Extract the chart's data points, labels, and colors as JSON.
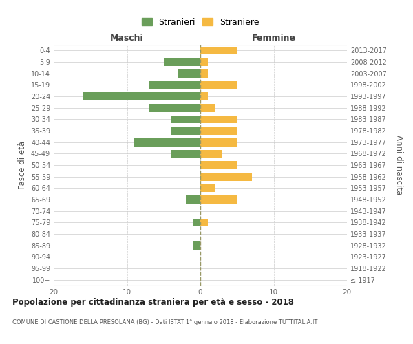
{
  "age_groups": [
    "100+",
    "95-99",
    "90-94",
    "85-89",
    "80-84",
    "75-79",
    "70-74",
    "65-69",
    "60-64",
    "55-59",
    "50-54",
    "45-49",
    "40-44",
    "35-39",
    "30-34",
    "25-29",
    "20-24",
    "15-19",
    "10-14",
    "5-9",
    "0-4"
  ],
  "birth_years": [
    "≤ 1917",
    "1918-1922",
    "1923-1927",
    "1928-1932",
    "1933-1937",
    "1938-1942",
    "1943-1947",
    "1948-1952",
    "1953-1957",
    "1958-1962",
    "1963-1967",
    "1968-1972",
    "1973-1977",
    "1978-1982",
    "1983-1987",
    "1988-1992",
    "1993-1997",
    "1998-2002",
    "2003-2007",
    "2008-2012",
    "2013-2017"
  ],
  "males": [
    0,
    0,
    0,
    1,
    0,
    1,
    0,
    2,
    0,
    0,
    0,
    4,
    9,
    4,
    4,
    7,
    16,
    7,
    3,
    5,
    0
  ],
  "females": [
    0,
    0,
    0,
    0,
    0,
    1,
    0,
    5,
    2,
    7,
    5,
    3,
    5,
    5,
    5,
    2,
    1,
    5,
    1,
    1,
    5
  ],
  "male_color": "#6a9e5a",
  "female_color": "#f5b942",
  "male_label": "Stranieri",
  "female_label": "Straniere",
  "xlabel_left": "Maschi",
  "xlabel_right": "Femmine",
  "ylabel_left": "Fasce di età",
  "ylabel_right": "Anni di nascita",
  "xlim": 20,
  "background_color": "#ffffff",
  "grid_color": "#cccccc",
  "title_main": "Popolazione per cittadinanza straniera per età e sesso - 2018",
  "title_sub": "COMUNE DI CASTIONE DELLA PRESOLANA (BG) - Dati ISTAT 1° gennaio 2018 - Elaborazione TUTTITALIA.IT"
}
